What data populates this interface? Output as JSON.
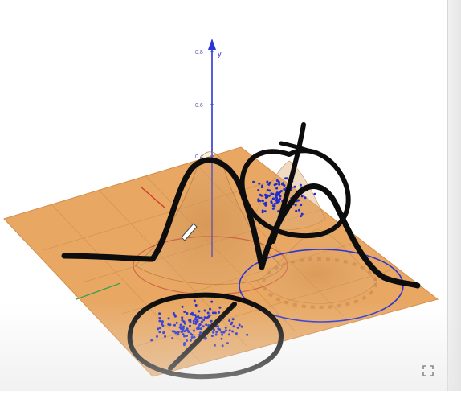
{
  "canvas": {
    "y_axis_label": "y",
    "y_ticks": [
      "0.8",
      "0.6",
      "0.4"
    ],
    "scatter_color": "#1f2bd1",
    "plane_color": "#e8a55f",
    "axis_color": "#2a35d6"
  },
  "toolbar": {
    "fullscreen_icon": "fullscreen-icon"
  }
}
